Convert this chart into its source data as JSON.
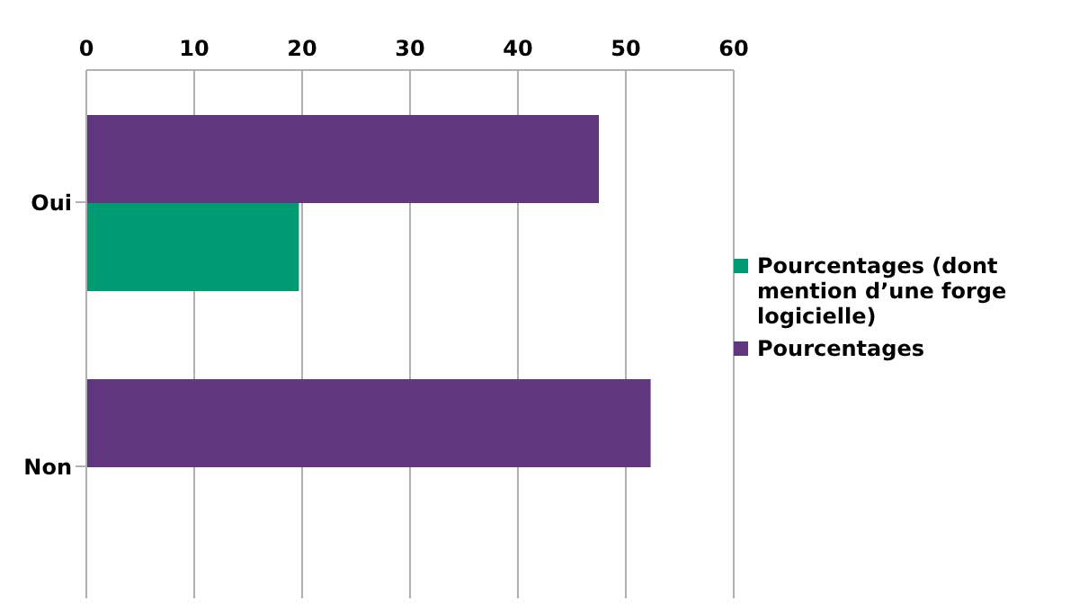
{
  "chart_data": {
    "type": "bar",
    "orientation": "horizontal",
    "categories": [
      "Oui",
      "Non"
    ],
    "series": [
      {
        "name": "Pourcentages",
        "color": "#60377f",
        "values": [
          47.5,
          52.3
        ]
      },
      {
        "name": "Pourcentages (dont mention d’une forge logicielle)",
        "color": "#009b72",
        "values": [
          19.7,
          null
        ]
      }
    ],
    "xlim": [
      0,
      60
    ],
    "xticks": [
      0,
      10,
      20,
      30,
      40,
      50,
      60
    ],
    "grid": "x",
    "legend": "right"
  }
}
